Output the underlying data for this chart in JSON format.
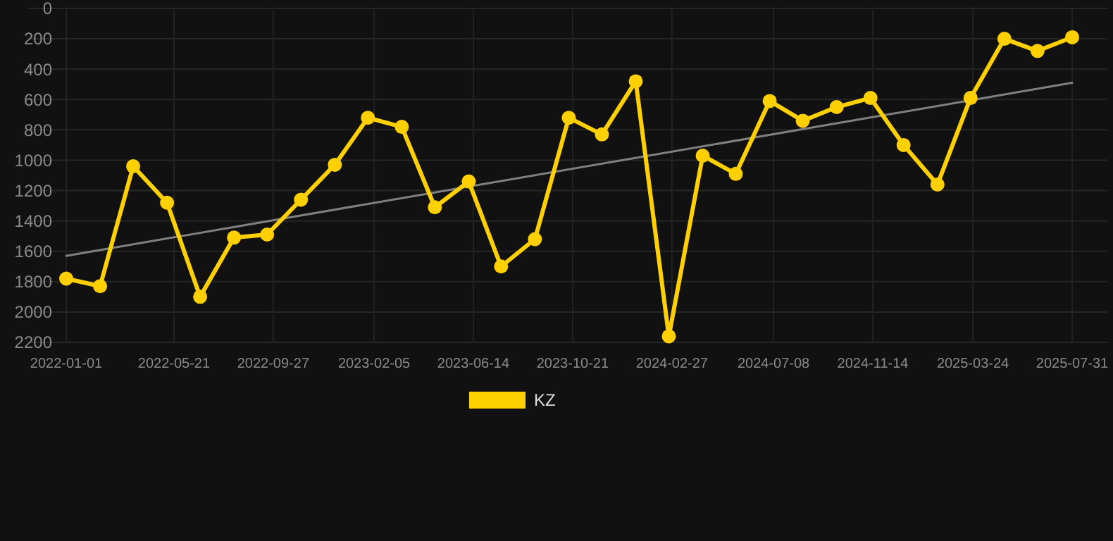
{
  "chart_data": {
    "type": "line",
    "x": [
      "2022-01-01",
      "2022-02-14",
      "2022-03-29",
      "2022-05-12",
      "2022-06-24",
      "2022-08-07",
      "2022-09-19",
      "2022-11-02",
      "2022-12-16",
      "2023-01-28",
      "2023-03-13",
      "2023-04-25",
      "2023-06-08",
      "2023-07-20",
      "2023-09-02",
      "2023-10-16",
      "2023-11-28",
      "2024-01-11",
      "2024-02-23",
      "2024-04-07",
      "2024-05-20",
      "2024-07-03",
      "2024-08-15",
      "2024-09-28",
      "2024-11-11",
      "2024-12-24",
      "2025-02-06",
      "2025-03-21",
      "2025-05-04",
      "2025-06-16",
      "2025-07-31"
    ],
    "series": [
      {
        "name": "KZ",
        "color": "#ffd000",
        "marker": "circle",
        "values": [
          1780,
          1830,
          1040,
          1280,
          1900,
          1510,
          1490,
          1260,
          1030,
          720,
          780,
          1310,
          1140,
          1700,
          1520,
          720,
          830,
          480,
          2160,
          970,
          1090,
          610,
          740,
          650,
          590,
          900,
          1160,
          590,
          200,
          280,
          190
        ]
      },
      {
        "type": "line",
        "color": "#808080",
        "marker": "none",
        "x": [
          "2022-01-01",
          "2025-07-31"
        ],
        "values": [
          1630,
          490
        ]
      }
    ],
    "xlim": [
      "2022-01-01",
      "2025-07-31"
    ],
    "xticks": [
      "2022-01-01",
      "2022-05-21",
      "2022-09-27",
      "2023-02-05",
      "2023-06-14",
      "2023-10-21",
      "2024-02-27",
      "2024-07-08",
      "2024-11-14",
      "2025-03-24",
      "2025-07-31"
    ],
    "ylim": [
      2200,
      0
    ],
    "yticks": [
      0,
      200,
      400,
      600,
      800,
      1000,
      1200,
      1400,
      1600,
      1800,
      2000,
      2200
    ],
    "grid": true,
    "legend": "bottom"
  }
}
